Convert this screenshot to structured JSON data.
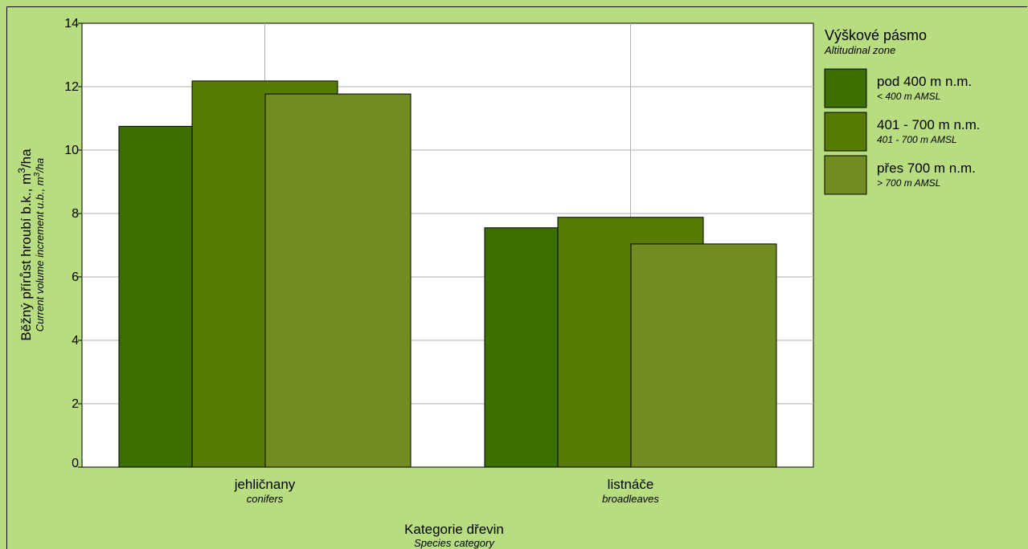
{
  "chart_data": {
    "type": "bar",
    "categories": [
      "jehličnany",
      "listnáče"
    ],
    "categories_sub": [
      "conifers",
      "broadleaves"
    ],
    "series": [
      {
        "name": "pod 400 m n.m.",
        "name_sub": "< 400 m AMSL",
        "color": "#3c6e00",
        "values": [
          10.75,
          7.55
        ]
      },
      {
        "name": "401 - 700 m n.m.",
        "name_sub": "401 - 700 m AMSL",
        "color": "#567b00",
        "values": [
          12.18,
          7.88
        ]
      },
      {
        "name": "přes 700 m n.m.",
        "name_sub": "> 700 m AMSL",
        "color": "#718c20",
        "values": [
          11.77,
          7.04
        ]
      }
    ],
    "xlabel": "Kategorie dřevin",
    "xlabel_sub": "Species category",
    "ylabel_parts": [
      "Běžný přírůst hroubí b.k., m",
      "3",
      "/ha"
    ],
    "ylabel_sub_parts": [
      "Current volume increment u.b., m",
      "3",
      "/ha"
    ],
    "ylim": [
      0,
      14
    ],
    "yticks": [
      0,
      2,
      4,
      6,
      8,
      10,
      12,
      14
    ],
    "grid": true,
    "plot_background": "#ffffff",
    "legend_title": "Výškové pásmo",
    "legend_title_sub": "Altitudinal zone",
    "legend_position": "right"
  }
}
